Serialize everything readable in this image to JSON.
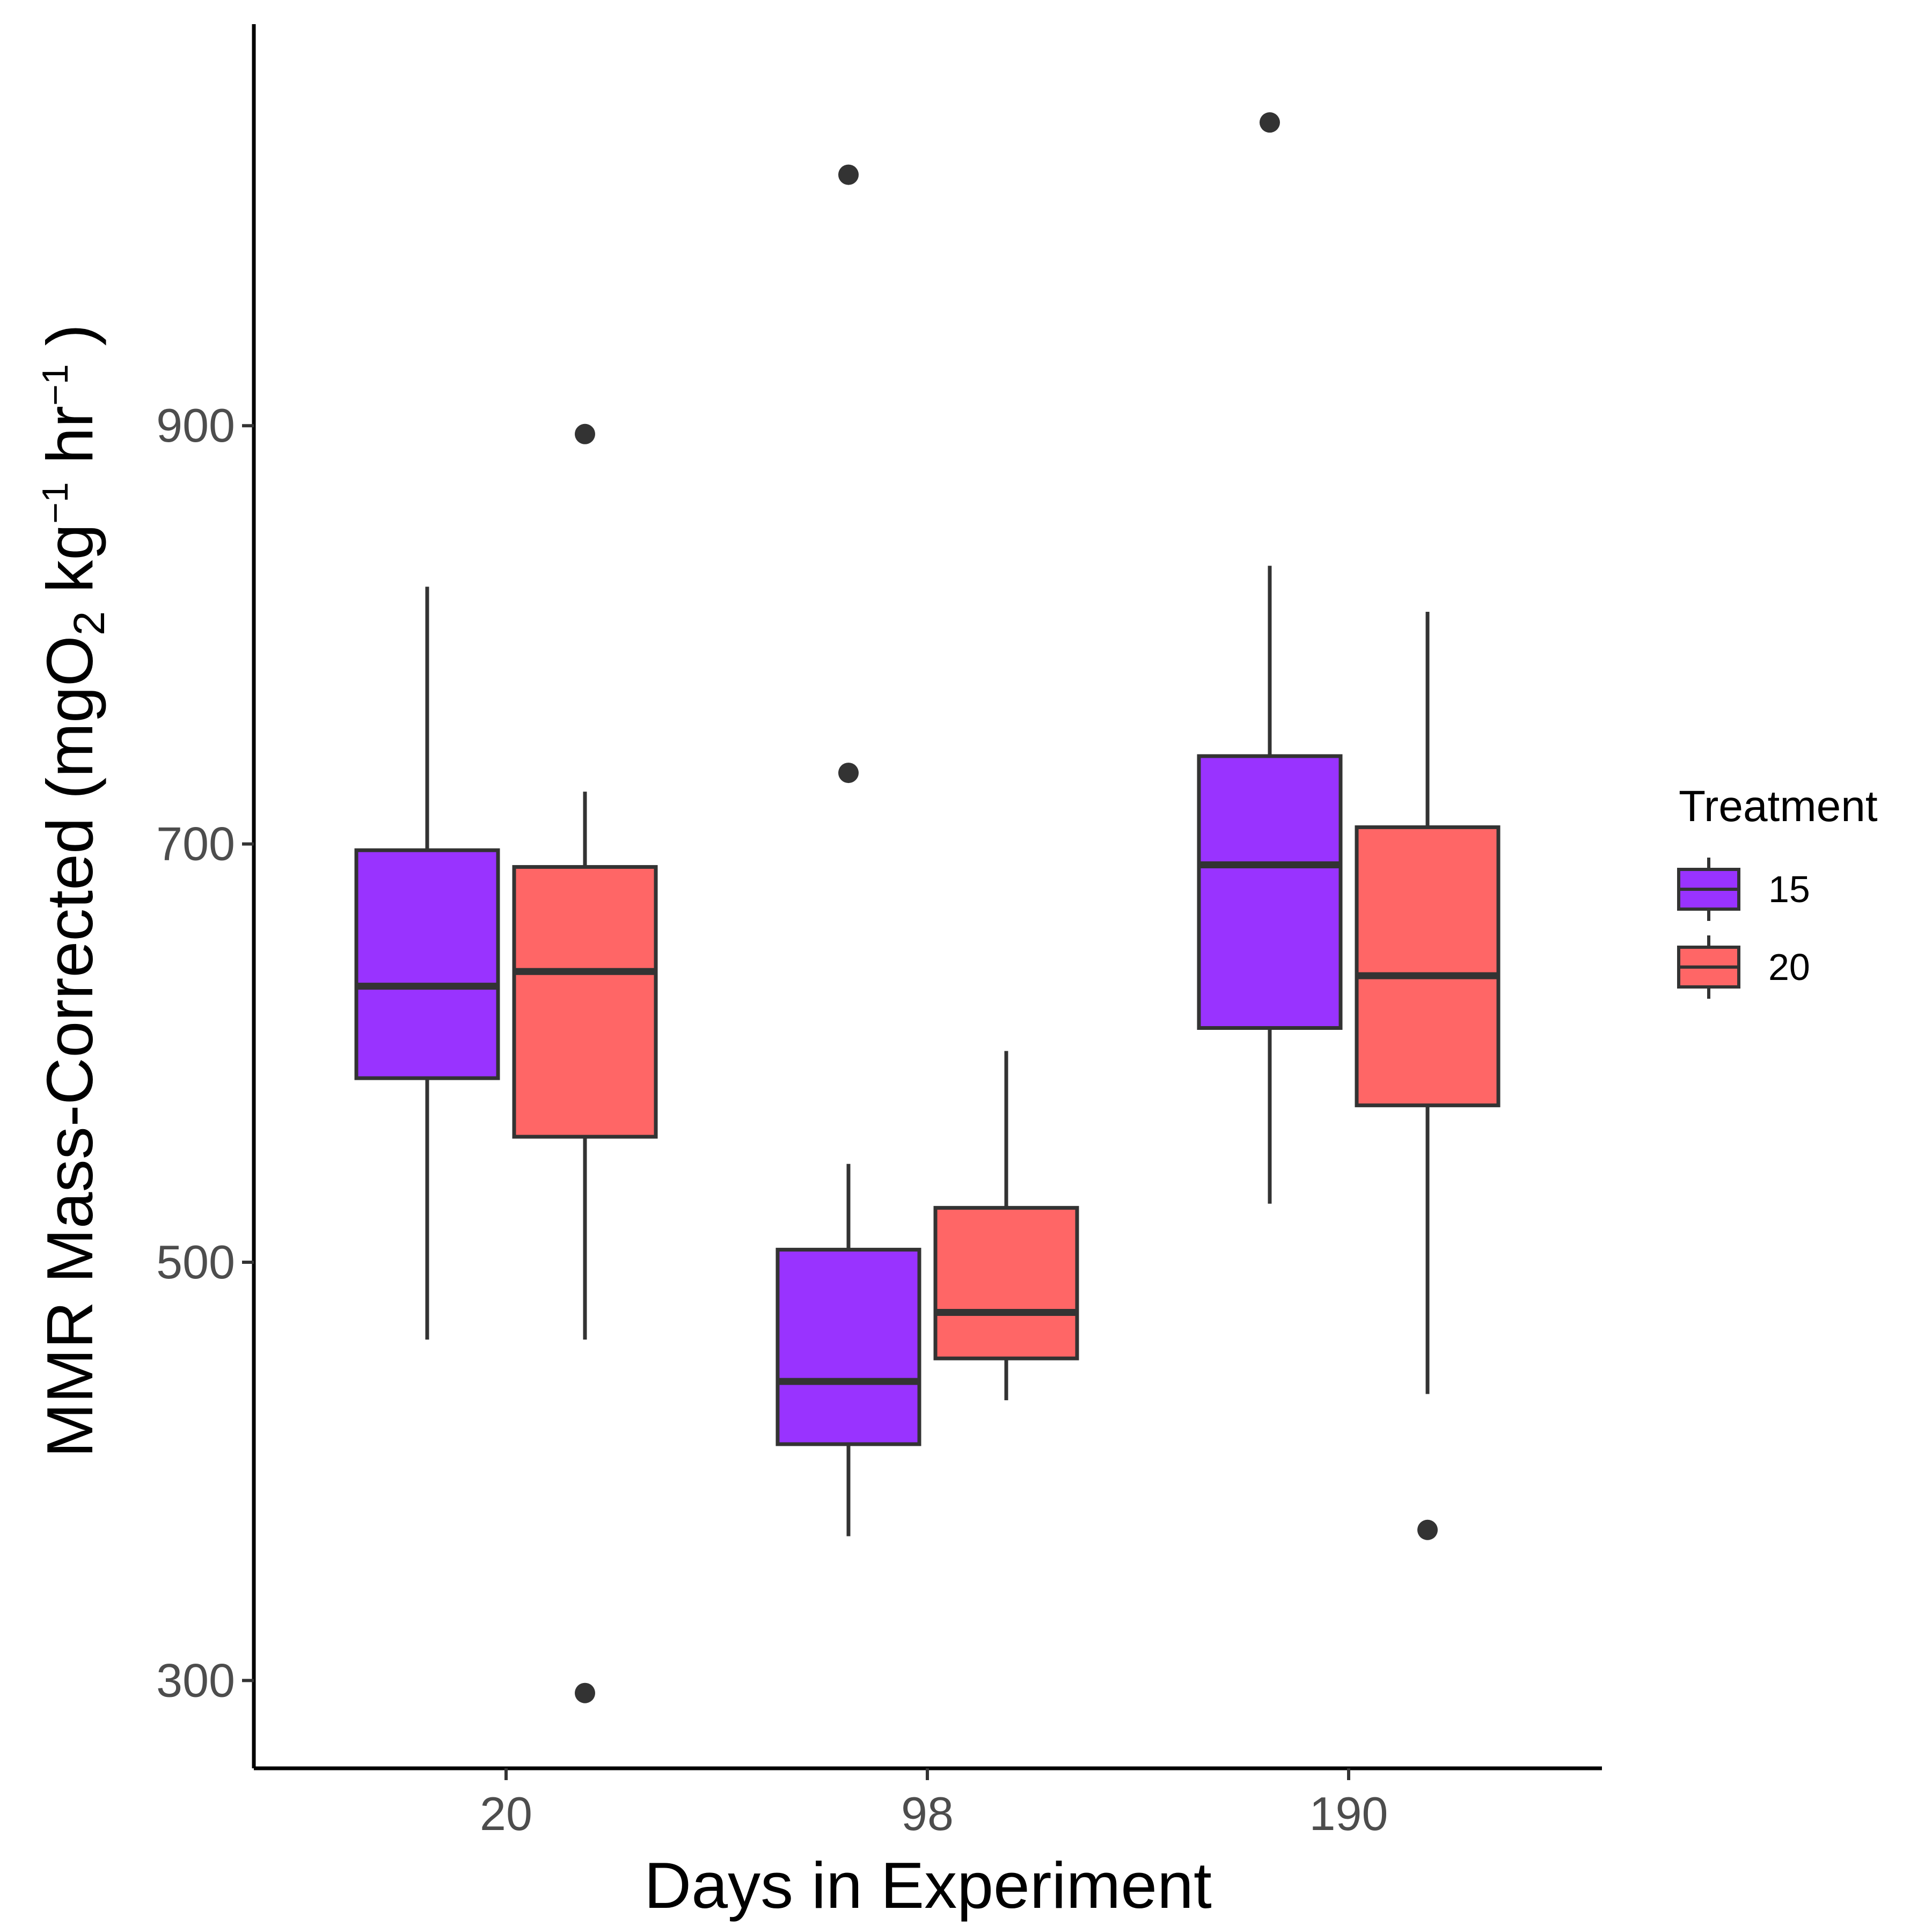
{
  "chart_data": {
    "type": "box",
    "title": "",
    "xlabel": "Days in Experiment",
    "ylabel": {
      "parts": [
        {
          "text": "MMR Mass-Corrected (mgO",
          "shift": "base"
        },
        {
          "text": "2",
          "shift": "sub"
        },
        {
          "text": " kg",
          "shift": "base"
        },
        {
          "text": "−1",
          "shift": "sup"
        },
        {
          "text": " hr",
          "shift": "base"
        },
        {
          "text": "−1",
          "shift": "sup"
        },
        {
          "text": " )",
          "shift": "base"
        }
      ]
    },
    "categories": [
      "20",
      "98",
      "190"
    ],
    "yticks": [
      300,
      500,
      700,
      900
    ],
    "ylim": [
      258,
      1092
    ],
    "legend": {
      "title": "Treatment",
      "position": "right"
    },
    "series": [
      {
        "name": "15",
        "color": "#9933FF",
        "boxes": [
          {
            "whisker_low": 463,
            "q1": 588,
            "median": 632,
            "q3": 697,
            "whisker_high": 823,
            "outliers": []
          },
          {
            "whisker_low": 369,
            "q1": 413,
            "median": 443,
            "q3": 506,
            "whisker_high": 547,
            "outliers": [
              1020,
              734
            ]
          },
          {
            "whisker_low": 528,
            "q1": 612,
            "median": 690,
            "q3": 742,
            "whisker_high": 833,
            "outliers": [
              1045
            ]
          }
        ]
      },
      {
        "name": "20",
        "color": "#FF6666",
        "boxes": [
          {
            "whisker_low": 463,
            "q1": 560,
            "median": 639,
            "q3": 689,
            "whisker_high": 725,
            "outliers": [
              896,
              294
            ]
          },
          {
            "whisker_low": 434,
            "q1": 454,
            "median": 476,
            "q3": 526,
            "whisker_high": 601,
            "outliers": []
          },
          {
            "whisker_low": 437,
            "q1": 575,
            "median": 637,
            "q3": 708,
            "whisker_high": 811,
            "outliers": [
              372
            ]
          }
        ]
      }
    ]
  }
}
